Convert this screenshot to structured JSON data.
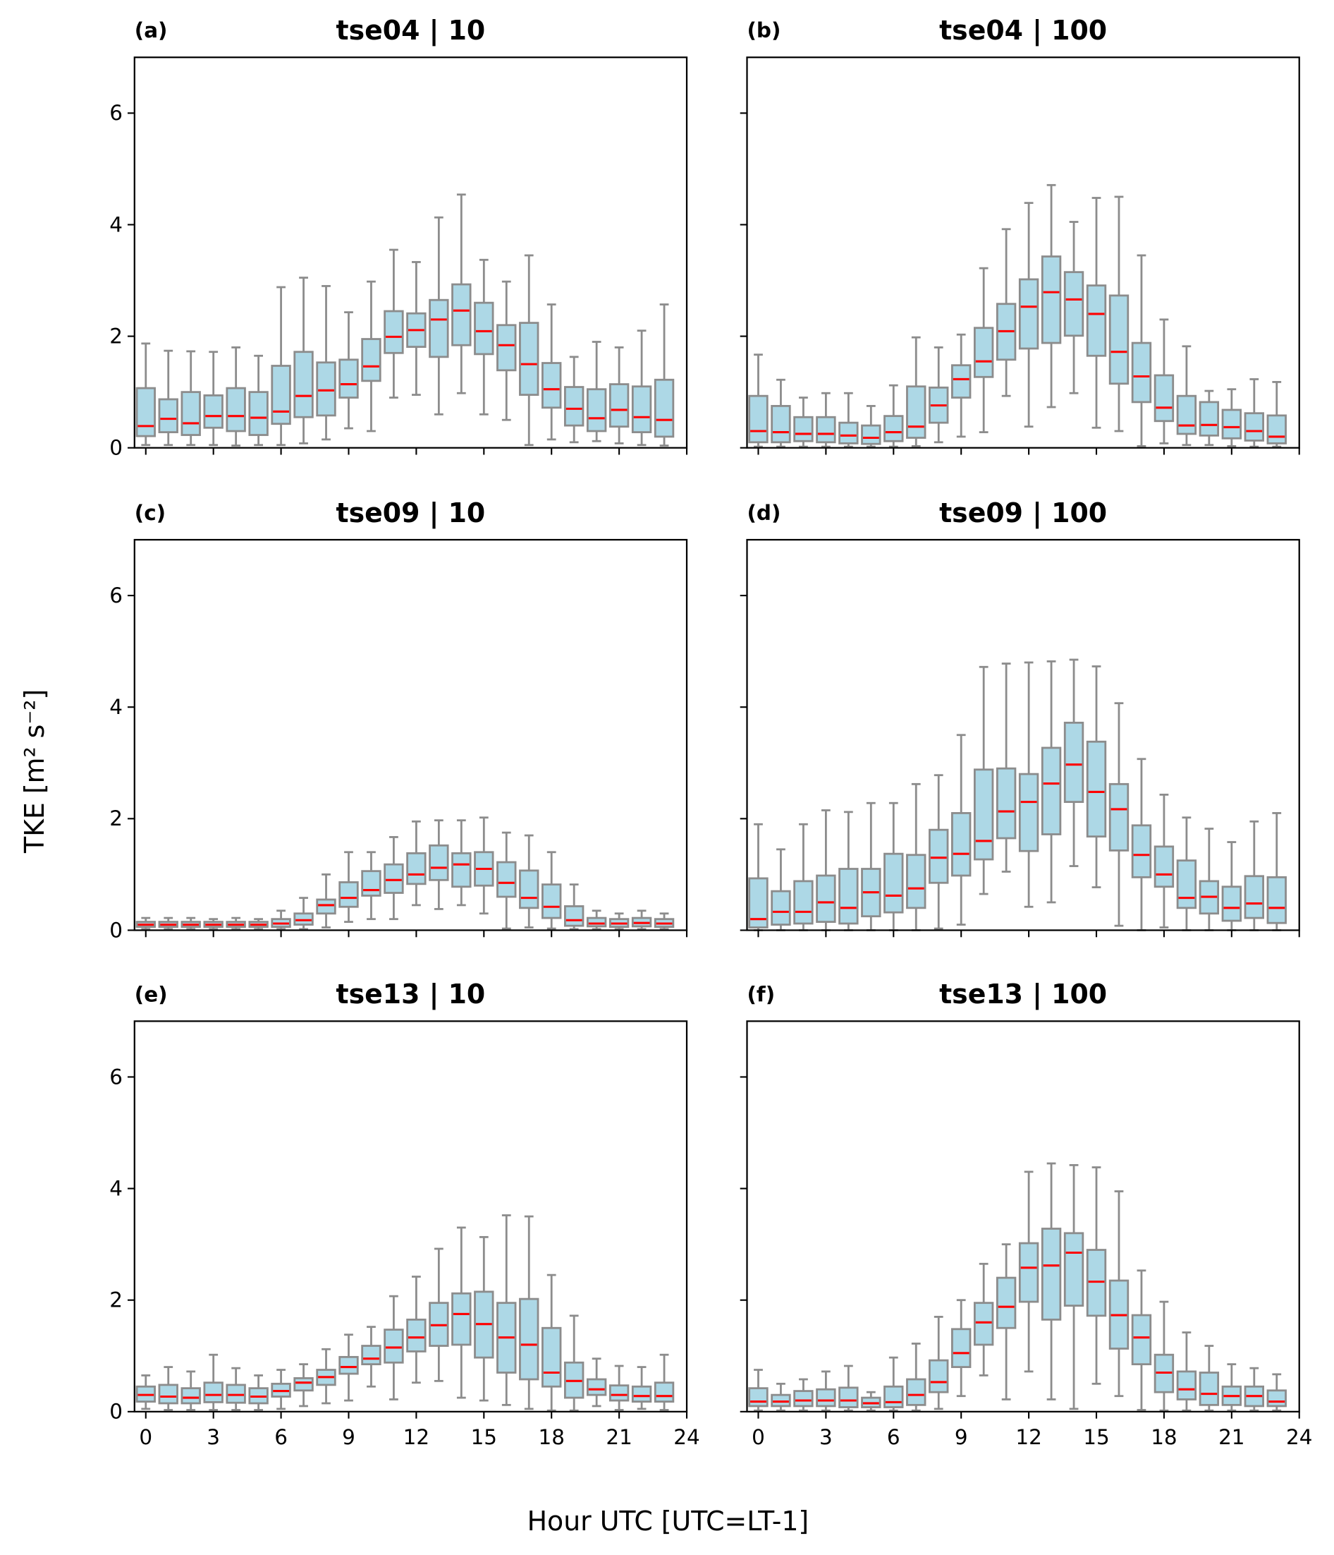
{
  "chart_data": {
    "type": "boxplot",
    "xlabel": "Hour UTC [UTC=LT-1]",
    "ylabel": "TKE [m² s⁻²]",
    "xlim": [
      -0.5,
      24
    ],
    "ylim": [
      0,
      7
    ],
    "xticks": [
      0,
      3,
      6,
      9,
      12,
      15,
      18,
      21,
      24
    ],
    "yticks": [
      0,
      2,
      4,
      6
    ],
    "grid": false,
    "colors": {
      "box_fill": "#add8e6",
      "box_edge": "#8c8c8c",
      "median": "#ff0000"
    },
    "box_fields": [
      "whisker_low",
      "q1",
      "median",
      "q3",
      "whisker_high"
    ],
    "panels": [
      {
        "letter": "(a)",
        "title": "tse04 | 10",
        "x": [
          0,
          1,
          2,
          3,
          4,
          5,
          6,
          7,
          8,
          9,
          10,
          11,
          12,
          13,
          14,
          15,
          16,
          17,
          18,
          19,
          20,
          21,
          22,
          23
        ],
        "boxes": [
          [
            0.05,
            0.21,
            0.39,
            1.07,
            1.87
          ],
          [
            0.05,
            0.28,
            0.52,
            0.87,
            1.74
          ],
          [
            0.05,
            0.23,
            0.44,
            1.0,
            1.73
          ],
          [
            0.05,
            0.36,
            0.57,
            0.94,
            1.72
          ],
          [
            0.04,
            0.3,
            0.57,
            1.07,
            1.8
          ],
          [
            0.05,
            0.23,
            0.54,
            1.0,
            1.65
          ],
          [
            0.05,
            0.43,
            0.65,
            1.47,
            2.88
          ],
          [
            0.08,
            0.55,
            0.93,
            1.72,
            3.05
          ],
          [
            0.15,
            0.58,
            1.03,
            1.53,
            2.9
          ],
          [
            0.35,
            0.9,
            1.14,
            1.58,
            2.43
          ],
          [
            0.3,
            1.2,
            1.46,
            1.95,
            2.98
          ],
          [
            0.9,
            1.7,
            1.99,
            2.45,
            3.55
          ],
          [
            0.95,
            1.81,
            2.11,
            2.41,
            3.33
          ],
          [
            0.6,
            1.63,
            2.3,
            2.65,
            4.13
          ],
          [
            0.98,
            1.84,
            2.46,
            2.93,
            4.54
          ],
          [
            0.6,
            1.68,
            2.09,
            2.6,
            3.37
          ],
          [
            0.5,
            1.39,
            1.84,
            2.2,
            2.98
          ],
          [
            0.05,
            0.95,
            1.5,
            2.24,
            3.45
          ],
          [
            0.15,
            0.72,
            1.05,
            1.52,
            2.57
          ],
          [
            0.1,
            0.4,
            0.7,
            1.09,
            1.63
          ],
          [
            0.12,
            0.3,
            0.53,
            1.05,
            1.9
          ],
          [
            0.08,
            0.38,
            0.68,
            1.14,
            1.8
          ],
          [
            0.05,
            0.28,
            0.55,
            1.1,
            2.1
          ],
          [
            0.04,
            0.2,
            0.5,
            1.22,
            2.57
          ]
        ]
      },
      {
        "letter": "(b)",
        "title": "tse04 | 100",
        "x": [
          0,
          1,
          2,
          3,
          4,
          5,
          6,
          7,
          8,
          9,
          10,
          11,
          12,
          13,
          14,
          15,
          16,
          17,
          18,
          19,
          20,
          21,
          22,
          23
        ],
        "boxes": [
          [
            0.02,
            0.1,
            0.3,
            0.93,
            1.67
          ],
          [
            0.02,
            0.1,
            0.28,
            0.75,
            1.22
          ],
          [
            0.02,
            0.12,
            0.25,
            0.55,
            0.9
          ],
          [
            0.02,
            0.1,
            0.25,
            0.55,
            0.98
          ],
          [
            0.02,
            0.08,
            0.22,
            0.45,
            0.98
          ],
          [
            0.02,
            0.07,
            0.18,
            0.4,
            0.75
          ],
          [
            0.02,
            0.12,
            0.28,
            0.57,
            1.12
          ],
          [
            0.03,
            0.18,
            0.38,
            1.1,
            1.98
          ],
          [
            0.1,
            0.45,
            0.76,
            1.08,
            1.8
          ],
          [
            0.2,
            0.9,
            1.23,
            1.48,
            2.03
          ],
          [
            0.28,
            1.27,
            1.55,
            2.15,
            3.22
          ],
          [
            0.93,
            1.58,
            2.09,
            2.58,
            3.92
          ],
          [
            0.38,
            1.78,
            2.53,
            3.02,
            4.39
          ],
          [
            0.73,
            1.88,
            2.79,
            3.43,
            4.71
          ],
          [
            0.98,
            2.01,
            2.66,
            3.15,
            4.05
          ],
          [
            0.36,
            1.65,
            2.4,
            2.91,
            4.48
          ],
          [
            0.3,
            1.15,
            1.72,
            2.73,
            4.5
          ],
          [
            0.03,
            0.82,
            1.28,
            1.88,
            3.45
          ],
          [
            0.08,
            0.48,
            0.72,
            1.3,
            2.3
          ],
          [
            0.05,
            0.25,
            0.4,
            0.93,
            1.82
          ],
          [
            0.05,
            0.22,
            0.41,
            0.82,
            1.02
          ],
          [
            0.03,
            0.17,
            0.37,
            0.68,
            1.05
          ],
          [
            0.02,
            0.13,
            0.3,
            0.62,
            1.23
          ],
          [
            0.02,
            0.08,
            0.2,
            0.58,
            1.18
          ]
        ]
      },
      {
        "letter": "(c)",
        "title": "tse09 | 10",
        "x": [
          0,
          1,
          2,
          3,
          4,
          5,
          6,
          7,
          8,
          9,
          10,
          11,
          12,
          13,
          14,
          15,
          16,
          17,
          18,
          19,
          20,
          21,
          22,
          23
        ],
        "boxes": [
          [
            0.02,
            0.06,
            0.1,
            0.15,
            0.22
          ],
          [
            0.02,
            0.06,
            0.1,
            0.15,
            0.22
          ],
          [
            0.02,
            0.06,
            0.1,
            0.15,
            0.22
          ],
          [
            0.02,
            0.06,
            0.1,
            0.15,
            0.2
          ],
          [
            0.02,
            0.06,
            0.1,
            0.15,
            0.22
          ],
          [
            0.02,
            0.06,
            0.1,
            0.15,
            0.2
          ],
          [
            0.02,
            0.06,
            0.12,
            0.2,
            0.35
          ],
          [
            0.02,
            0.1,
            0.18,
            0.3,
            0.58
          ],
          [
            0.05,
            0.3,
            0.45,
            0.55,
            1.0
          ],
          [
            0.15,
            0.42,
            0.58,
            0.86,
            1.4
          ],
          [
            0.2,
            0.62,
            0.72,
            1.06,
            1.4
          ],
          [
            0.2,
            0.67,
            0.9,
            1.18,
            1.67
          ],
          [
            0.45,
            0.83,
            1.0,
            1.38,
            1.95
          ],
          [
            0.38,
            0.9,
            1.12,
            1.52,
            1.97
          ],
          [
            0.45,
            0.78,
            1.18,
            1.38,
            1.97
          ],
          [
            0.3,
            0.8,
            1.1,
            1.4,
            2.02
          ],
          [
            0.03,
            0.6,
            0.85,
            1.22,
            1.75
          ],
          [
            0.05,
            0.4,
            0.58,
            1.07,
            1.7
          ],
          [
            0.03,
            0.22,
            0.42,
            0.82,
            1.4
          ],
          [
            0.02,
            0.08,
            0.18,
            0.43,
            0.82
          ],
          [
            0.02,
            0.07,
            0.12,
            0.22,
            0.35
          ],
          [
            0.02,
            0.06,
            0.12,
            0.2,
            0.3
          ],
          [
            0.02,
            0.07,
            0.13,
            0.22,
            0.35
          ],
          [
            0.02,
            0.06,
            0.12,
            0.2,
            0.3
          ]
        ]
      },
      {
        "letter": "(d)",
        "title": "tse09 | 100",
        "x": [
          0,
          1,
          2,
          3,
          4,
          5,
          6,
          7,
          8,
          9,
          10,
          11,
          12,
          13,
          14,
          15,
          16,
          17,
          18,
          19,
          20,
          21,
          22,
          23
        ],
        "boxes": [
          [
            0.0,
            0.05,
            0.2,
            0.93,
            1.9
          ],
          [
            0.0,
            0.1,
            0.33,
            0.7,
            1.45
          ],
          [
            0.0,
            0.12,
            0.33,
            0.88,
            1.9
          ],
          [
            0.0,
            0.15,
            0.5,
            0.98,
            2.15
          ],
          [
            0.0,
            0.12,
            0.4,
            1.1,
            2.12
          ],
          [
            0.0,
            0.25,
            0.68,
            1.1,
            2.28
          ],
          [
            0.0,
            0.32,
            0.62,
            1.37,
            2.28
          ],
          [
            0.0,
            0.4,
            0.75,
            1.35,
            2.62
          ],
          [
            0.03,
            0.85,
            1.3,
            1.8,
            2.78
          ],
          [
            0.1,
            0.98,
            1.37,
            2.1,
            3.5
          ],
          [
            0.65,
            1.27,
            1.6,
            2.88,
            4.72
          ],
          [
            1.05,
            1.65,
            2.13,
            2.9,
            4.78
          ],
          [
            0.42,
            1.42,
            2.3,
            2.8,
            4.8
          ],
          [
            0.5,
            1.72,
            2.63,
            3.27,
            4.82
          ],
          [
            1.15,
            2.3,
            2.97,
            3.72,
            4.85
          ],
          [
            0.77,
            1.68,
            2.48,
            3.38,
            4.73
          ],
          [
            0.08,
            1.43,
            2.17,
            2.62,
            4.07
          ],
          [
            0.0,
            0.95,
            1.35,
            1.88,
            3.07
          ],
          [
            0.05,
            0.78,
            1.0,
            1.5,
            2.43
          ],
          [
            0.0,
            0.4,
            0.58,
            1.25,
            2.02
          ],
          [
            0.0,
            0.3,
            0.6,
            0.88,
            1.82
          ],
          [
            0.0,
            0.17,
            0.4,
            0.78,
            1.58
          ],
          [
            0.0,
            0.22,
            0.48,
            0.97,
            1.95
          ],
          [
            0.0,
            0.13,
            0.4,
            0.95,
            2.1
          ]
        ]
      },
      {
        "letter": "(e)",
        "title": "tse13 | 10",
        "x": [
          0,
          1,
          2,
          3,
          4,
          5,
          6,
          7,
          8,
          9,
          10,
          11,
          12,
          13,
          14,
          15,
          16,
          17,
          18,
          19,
          20,
          21,
          22,
          23
        ],
        "boxes": [
          [
            0.05,
            0.18,
            0.3,
            0.45,
            0.65
          ],
          [
            0.03,
            0.15,
            0.27,
            0.48,
            0.8
          ],
          [
            0.03,
            0.15,
            0.25,
            0.42,
            0.72
          ],
          [
            0.03,
            0.17,
            0.3,
            0.52,
            1.02
          ],
          [
            0.03,
            0.16,
            0.3,
            0.48,
            0.78
          ],
          [
            0.03,
            0.15,
            0.27,
            0.42,
            0.65
          ],
          [
            0.05,
            0.27,
            0.37,
            0.5,
            0.75
          ],
          [
            0.1,
            0.38,
            0.52,
            0.6,
            0.85
          ],
          [
            0.15,
            0.48,
            0.62,
            0.75,
            1.12
          ],
          [
            0.2,
            0.68,
            0.8,
            0.98,
            1.38
          ],
          [
            0.45,
            0.85,
            0.95,
            1.18,
            1.52
          ],
          [
            0.22,
            0.88,
            1.15,
            1.47,
            2.07
          ],
          [
            0.52,
            1.08,
            1.33,
            1.65,
            2.42
          ],
          [
            0.55,
            1.18,
            1.55,
            1.95,
            2.92
          ],
          [
            0.25,
            1.2,
            1.75,
            2.12,
            3.3
          ],
          [
            0.2,
            0.97,
            1.57,
            2.15,
            3.13
          ],
          [
            0.12,
            0.7,
            1.33,
            1.95,
            3.52
          ],
          [
            0.05,
            0.58,
            1.2,
            2.02,
            3.5
          ],
          [
            0.02,
            0.45,
            0.7,
            1.5,
            2.45
          ],
          [
            0.02,
            0.25,
            0.55,
            0.88,
            1.72
          ],
          [
            0.1,
            0.3,
            0.4,
            0.58,
            0.95
          ],
          [
            0.03,
            0.2,
            0.3,
            0.47,
            0.82
          ],
          [
            0.05,
            0.18,
            0.28,
            0.45,
            0.8
          ],
          [
            0.03,
            0.18,
            0.28,
            0.52,
            1.02
          ]
        ]
      },
      {
        "letter": "(f)",
        "title": "tse13 | 100",
        "x": [
          0,
          1,
          2,
          3,
          4,
          5,
          6,
          7,
          8,
          9,
          10,
          11,
          12,
          13,
          14,
          15,
          16,
          17,
          18,
          19,
          20,
          21,
          22,
          23
        ],
        "boxes": [
          [
            0.02,
            0.1,
            0.18,
            0.42,
            0.75
          ],
          [
            0.02,
            0.1,
            0.18,
            0.3,
            0.5
          ],
          [
            0.02,
            0.1,
            0.2,
            0.37,
            0.58
          ],
          [
            0.02,
            0.1,
            0.2,
            0.4,
            0.72
          ],
          [
            0.02,
            0.08,
            0.2,
            0.43,
            0.82
          ],
          [
            0.02,
            0.08,
            0.15,
            0.25,
            0.35
          ],
          [
            0.02,
            0.08,
            0.17,
            0.45,
            0.97
          ],
          [
            0.02,
            0.12,
            0.3,
            0.58,
            1.22
          ],
          [
            0.05,
            0.35,
            0.53,
            0.92,
            1.7
          ],
          [
            0.28,
            0.8,
            1.05,
            1.48,
            2.0
          ],
          [
            0.65,
            1.2,
            1.6,
            1.95,
            2.65
          ],
          [
            0.22,
            1.5,
            1.88,
            2.4,
            3.0
          ],
          [
            0.72,
            1.97,
            2.58,
            3.02,
            4.3
          ],
          [
            0.22,
            1.65,
            2.62,
            3.28,
            4.45
          ],
          [
            0.05,
            1.9,
            2.85,
            3.2,
            4.42
          ],
          [
            0.5,
            1.72,
            2.33,
            2.9,
            4.38
          ],
          [
            0.28,
            1.13,
            1.73,
            2.35,
            3.95
          ],
          [
            0.03,
            0.85,
            1.33,
            1.73,
            2.53
          ],
          [
            0.02,
            0.35,
            0.7,
            1.02,
            1.97
          ],
          [
            0.02,
            0.22,
            0.4,
            0.72,
            1.42
          ],
          [
            0.02,
            0.12,
            0.32,
            0.7,
            1.18
          ],
          [
            0.02,
            0.12,
            0.28,
            0.45,
            0.85
          ],
          [
            0.02,
            0.1,
            0.28,
            0.45,
            0.78
          ],
          [
            0.02,
            0.1,
            0.18,
            0.38,
            0.67
          ]
        ]
      }
    ]
  }
}
